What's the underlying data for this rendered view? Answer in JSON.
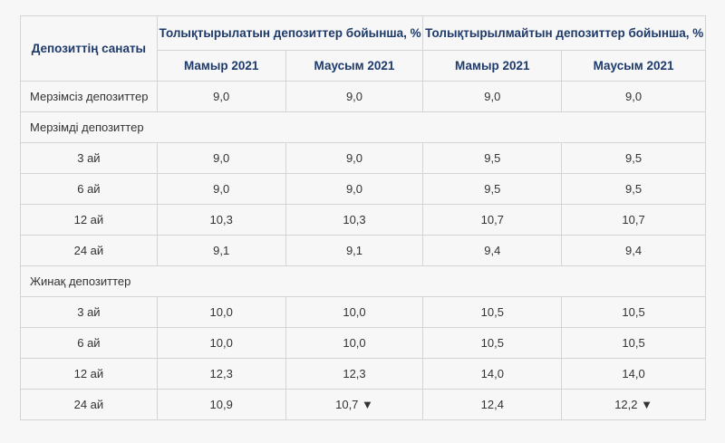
{
  "header": {
    "category": "Депозиттің санаты",
    "group1": "Толықтырылатын депозиттер бойынша, %",
    "group2": "Толықтырылмайтын депозиттер бойынша, %",
    "months": [
      "Мамыр 2021",
      "Маусым 2021",
      "Мамыр 2021",
      "Маусым 2021"
    ]
  },
  "rows": [
    {
      "label": "Мерзімсіз депозиттер",
      "left": true,
      "values": [
        "9,0",
        "9,0",
        "9,0",
        "9,0"
      ]
    },
    {
      "section": "Мерзімді депозиттер"
    },
    {
      "label": "3 ай",
      "values": [
        "9,0",
        "9,0",
        "9,5",
        "9,5"
      ]
    },
    {
      "label": "6 ай",
      "values": [
        "9,0",
        "9,0",
        "9,5",
        "9,5"
      ]
    },
    {
      "label": "12 ай",
      "values": [
        "10,3",
        "10,3",
        "10,7",
        "10,7"
      ]
    },
    {
      "label": "24 ай",
      "values": [
        "9,1",
        "9,1",
        "9,4",
        "9,4"
      ]
    },
    {
      "section": "Жинақ депозиттер"
    },
    {
      "label": "3 ай",
      "values": [
        "10,0",
        "10,0",
        "10,5",
        "10,5"
      ]
    },
    {
      "label": "6 ай",
      "values": [
        "10,0",
        "10,0",
        "10,5",
        "10,5"
      ]
    },
    {
      "label": "12 ай",
      "values": [
        "12,3",
        "12,3",
        "14,0",
        "14,0"
      ]
    },
    {
      "label": "24 ай",
      "values": [
        "10,9",
        "10,7 ▼",
        "12,4",
        "12,2 ▼"
      ]
    }
  ]
}
